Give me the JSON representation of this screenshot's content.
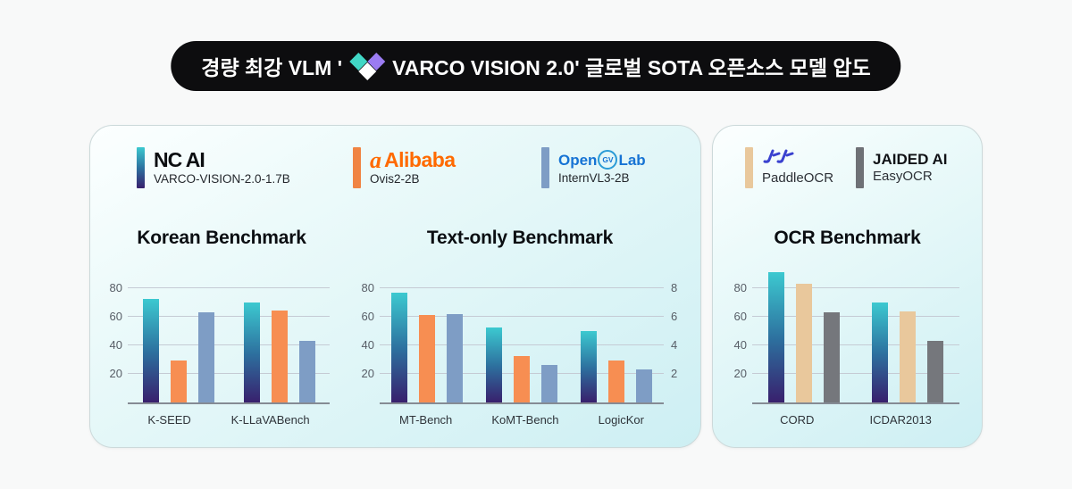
{
  "banner": {
    "text_before_logo": "경량 최강 VLM '",
    "text_after_logo": "VARCO VISION 2.0' 글로벌 SOTA 오픈소스 모델 압도",
    "background": "#0d0d0f",
    "text_color": "#ffffff",
    "logo_colors": {
      "left_diamond": "#41d8c6",
      "right_diamond": "#9b7cf2",
      "bottom_diamond": "#ffffff"
    }
  },
  "legend_groups": {
    "left": [
      {
        "logo": "NC AI",
        "model": "VARCO-VISION-2.0-1.7B"
      },
      {
        "logo": "Alibaba",
        "icon_letter": "a",
        "model": "Ovis2-2B"
      },
      {
        "logo_parts": {
          "pre": "Open",
          "circle": "GV",
          "post": "Lab"
        },
        "model": "InternVL3-2B"
      }
    ],
    "right": [
      {
        "model": "PaddleOCR"
      },
      {
        "logo": "JAIDED AI",
        "model": "EasyOCR"
      }
    ]
  },
  "chart_data": [
    {
      "type": "bar",
      "title": "Korean Benchmark",
      "categories": [
        "K-SEED",
        "K-LLaVABench"
      ],
      "series": [
        {
          "name": "VARCO-VISION-2.0-1.7B",
          "values": [
            72.5,
            70
          ]
        },
        {
          "name": "Ovis2-2B",
          "values": [
            29.5,
            64.5
          ]
        },
        {
          "name": "InternVL3-2B",
          "values": [
            63,
            43
          ]
        }
      ],
      "yticks": [
        20,
        40,
        60,
        80
      ],
      "ylim": [
        0,
        100
      ],
      "grid": true
    },
    {
      "type": "bar",
      "title": "Text-only Benchmark",
      "categories": [
        "MT-Bench",
        "KoMT-Bench",
        "LogicKor"
      ],
      "series": [
        {
          "name": "VARCO-VISION-2.0-1.7B",
          "values": [
            77,
            52.5,
            50
          ]
        },
        {
          "name": "Ovis2-2B",
          "values": [
            61,
            32.5,
            29.5
          ]
        },
        {
          "name": "InternVL3-2B",
          "values": [
            62,
            26.5,
            23
          ]
        }
      ],
      "yticks": [
        20,
        40,
        60,
        80
      ],
      "yticks_right": [
        2,
        4,
        6,
        8
      ],
      "ylim": [
        0,
        100
      ],
      "grid": true
    },
    {
      "type": "bar",
      "title": "OCR Benchmark",
      "categories": [
        "CORD",
        "ICDAR2013"
      ],
      "series": [
        {
          "name": "VARCO-VISION-2.0-1.7B",
          "values": [
            91,
            70
          ]
        },
        {
          "name": "PaddleOCR",
          "values": [
            83,
            64
          ]
        },
        {
          "name": "EasyOCR",
          "values": [
            63,
            43
          ]
        }
      ],
      "yticks": [
        20,
        40,
        60,
        80
      ],
      "ylim": [
        0,
        100
      ],
      "grid": true
    }
  ],
  "colors": {
    "series": {
      "VARCO-VISION-2.0-1.7B": "linear-gradient(180deg,#3cc9d0 0%,#2d6f9e 52%,#38206d 100%)",
      "Ovis2-2B": "#f78e52",
      "InternVL3-2B": "#7e9dc5",
      "PaddleOCR": "#e9c89c",
      "EasyOCR": "#75777c"
    },
    "swatches": {
      "varco": "linear-gradient(180deg,#3cc9d0 0%,#2d6f9e 52%,#38206d 100%)",
      "ovis": "#f08443",
      "internvl": "#7e9dc5",
      "paddle": "#e9c89c",
      "easyocr": "#6e7176"
    },
    "alibaba_orange": "#ff6a00",
    "opengvlab_blue": "#1673d4",
    "paddle_logo_blue": "#3a41cf",
    "card_bg_top": "#fcffff",
    "card_bg_bottom": "#cdeff3",
    "gridline": "#c5cbd4",
    "axis_line": "#858b94"
  }
}
